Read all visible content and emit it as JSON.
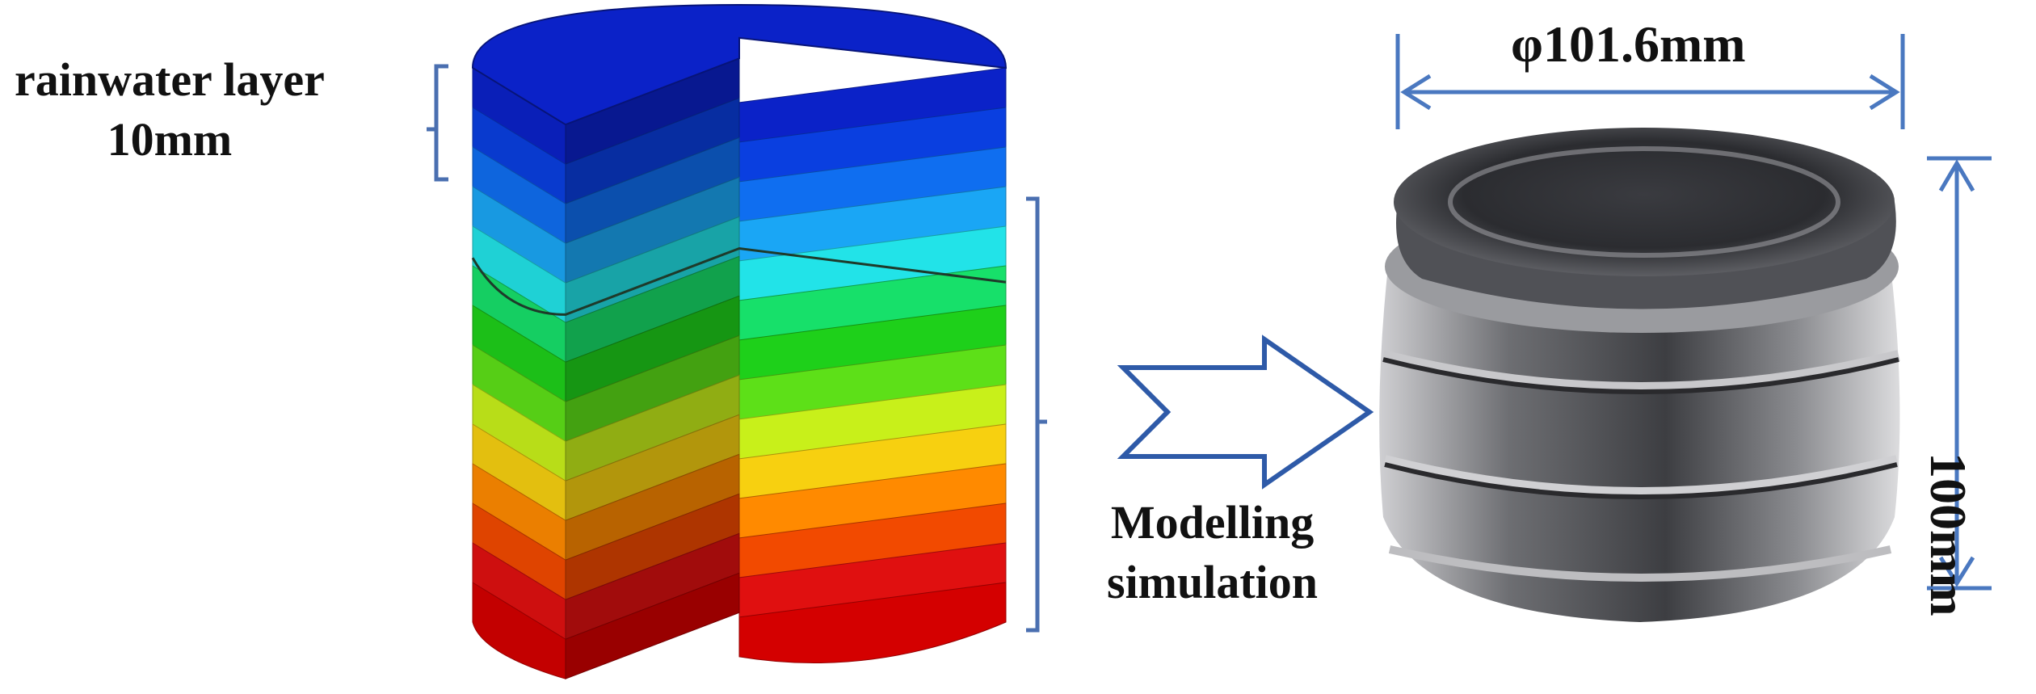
{
  "labels": {
    "rainwater_line1": "rainwater layer",
    "rainwater_line2": "10mm",
    "modelling_line1": "Modelling",
    "modelling_line2": "simulation",
    "diameter": "φ101.6mm",
    "height": "100mm"
  },
  "model": {
    "layer_colors": [
      "#0b22c8",
      "#0a3fe0",
      "#0f6ef0",
      "#1aa6f5",
      "#22e3e8",
      "#17e06a",
      "#1ed01a",
      "#5de018",
      "#c8f01a",
      "#f7d010",
      "#ff8a00",
      "#f24a00",
      "#e01010",
      "#d40000"
    ]
  },
  "colors": {
    "bracket": "#4a6fb0",
    "arrow": "#2e5aa8",
    "dimension": "#4a78c0"
  }
}
